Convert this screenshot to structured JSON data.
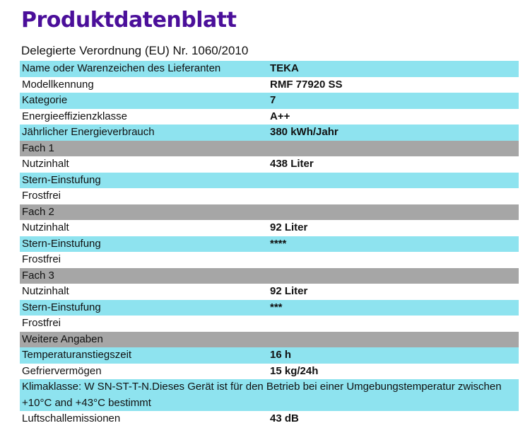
{
  "title": "Produktdatenblatt",
  "subtitle": "Delegierte Verordnung (EU) Nr. 1060/2010",
  "rows": [
    {
      "label": "Name oder Warenzeichen des Lieferanten",
      "value": "TEKA"
    },
    {
      "label": "Modellkennung",
      "value": "RMF 77920 SS"
    },
    {
      "label": "Kategorie",
      "value": "7"
    },
    {
      "label": "Energieeffizienzklasse",
      "value": "A++"
    },
    {
      "label": "Jährlicher Energieverbrauch",
      "value": "380 kWh/Jahr"
    },
    {
      "label": "Fach 1",
      "value": ""
    },
    {
      "label": "Nutzinhalt",
      "value": "438 Liter"
    },
    {
      "label": "Stern-Einstufung",
      "value": ""
    },
    {
      "label": "Frostfrei",
      "value": ""
    },
    {
      "label": "Fach 2",
      "value": ""
    },
    {
      "label": "Nutzinhalt",
      "value": "92 Liter"
    },
    {
      "label": "Stern-Einstufung",
      "value": "****"
    },
    {
      "label": "Frostfrei",
      "value": ""
    },
    {
      "label": "Fach 3",
      "value": ""
    },
    {
      "label": "Nutzinhalt",
      "value": "92 Liter"
    },
    {
      "label": "Stern-Einstufung",
      "value": "***"
    },
    {
      "label": "Frostfrei",
      "value": ""
    },
    {
      "label": "Weitere Angaben",
      "value": ""
    },
    {
      "label": "Temperaturanstiegszeit",
      "value": "16 h"
    },
    {
      "label": "Gefriervermögen",
      "value": "15 kg/24h"
    }
  ],
  "climate_note": "Klimaklasse: W SN-ST-T-N.Dieses Gerät ist für den Betrieb bei einer Umgebungstemperatur zwischen +10°C and +43°C bestimmt",
  "last_row": {
    "label": "Luftschallemissionen",
    "value": "43 dB"
  },
  "colors": {
    "title": "#4b0f9a",
    "blue": "#8ee3ef",
    "gray": "#a6a6a6"
  }
}
